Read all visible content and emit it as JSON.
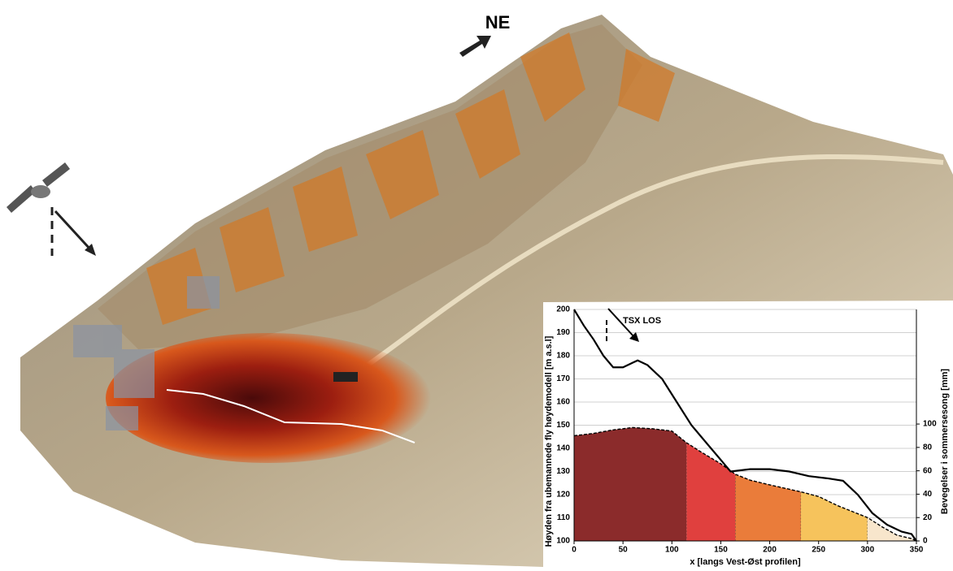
{
  "map": {
    "compass_label": "NE"
  },
  "chart_data": {
    "type": "line",
    "annotation": "TSX LOS",
    "x_label": "x [langs Vest-Øst profilen]",
    "y_label": "Høyden fra ubemannede fly høydemodell [m a.s.l]",
    "y2_label": "Bevegelser i sommersesong [mm]",
    "xlim": [
      0,
      350
    ],
    "xticks": [
      0,
      50,
      100,
      150,
      200,
      250,
      300,
      350
    ],
    "ylim": [
      100,
      200
    ],
    "yticks": [
      100,
      110,
      120,
      130,
      140,
      150,
      160,
      170,
      180,
      190,
      200
    ],
    "y2lim": [
      0,
      198
    ],
    "y2ticks": [
      0,
      20,
      40,
      60,
      80,
      100
    ],
    "grid": true,
    "series": [
      {
        "color": "#000000",
        "x": [
          0,
          10,
          20,
          30,
          40,
          50,
          60,
          65,
          75,
          90,
          105,
          120,
          140,
          160,
          180,
          200,
          220,
          240,
          260,
          275,
          290,
          305,
          320,
          335,
          345,
          350
        ],
        "values": [
          200,
          193,
          187,
          180,
          175,
          175,
          177,
          178,
          176,
          170,
          160,
          150,
          140,
          130,
          131,
          131,
          130,
          128,
          127,
          126,
          120,
          112,
          107,
          104,
          103,
          100
        ]
      },
      {
        "color": "#000000",
        "axis": "y2",
        "dashed": true,
        "x": [
          0,
          20,
          40,
          60,
          80,
          100,
          115,
          130,
          150,
          165,
          180,
          200,
          232,
          250,
          270,
          300,
          315,
          330,
          345,
          350
        ],
        "values": [
          90,
          92,
          95,
          97,
          96,
          94,
          84,
          76,
          66,
          57,
          52,
          48,
          42,
          38,
          30,
          20,
          12,
          5,
          2,
          0
        ]
      }
    ],
    "zones": [
      {
        "from": 0,
        "to": 115,
        "color": "#8b2b2b"
      },
      {
        "from": 115,
        "to": 165,
        "color": "#e0403e"
      },
      {
        "from": 165,
        "to": 232,
        "color": "#ea7c3a"
      },
      {
        "from": 232,
        "to": 300,
        "color": "#f6c35c"
      },
      {
        "from": 300,
        "to": 350,
        "color": "#f8e6cc"
      }
    ]
  }
}
